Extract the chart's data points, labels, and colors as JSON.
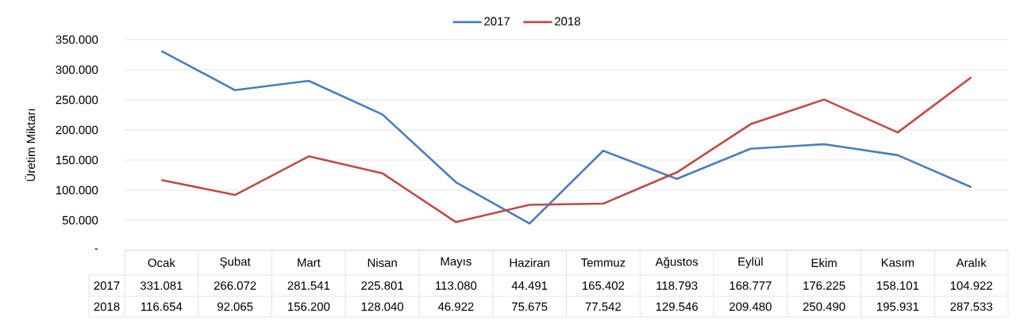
{
  "chart_data": {
    "type": "line",
    "ylabel": "Üretim Miktarı",
    "categories": [
      "Ocak",
      "Şubat",
      "Mart",
      "Nisan",
      "Mayıs",
      "Haziran",
      "Temmuz",
      "Ağustos",
      "Eylül",
      "Ekim",
      "Kasım",
      "Aralık"
    ],
    "series": [
      {
        "name": "2017",
        "color": "#4a7ebb",
        "values": [
          331081,
          266072,
          281541,
          225801,
          113080,
          44491,
          165402,
          118793,
          168777,
          176225,
          158101,
          104922
        ],
        "value_labels": [
          "331.081",
          "266.072",
          "281.541",
          "225.801",
          "113.080",
          "44.491",
          "165.402",
          "118.793",
          "168.777",
          "176.225",
          "158.101",
          "104.922"
        ]
      },
      {
        "name": "2018",
        "color": "#be4b48",
        "values": [
          116654,
          92065,
          156200,
          128040,
          46922,
          75675,
          77542,
          129546,
          209480,
          250490,
          195931,
          287533
        ],
        "value_labels": [
          "116.654",
          "92.065",
          "156.200",
          "128.040",
          "46.922",
          "75.675",
          "77.542",
          "129.546",
          "209.480",
          "250.490",
          "195.931",
          "287.533"
        ]
      }
    ],
    "ylim": [
      0,
      350000
    ],
    "yticks": [
      {
        "value": 0,
        "label": "-"
      },
      {
        "value": 50000,
        "label": "50.000"
      },
      {
        "value": 100000,
        "label": "100.000"
      },
      {
        "value": 150000,
        "label": "150.000"
      },
      {
        "value": 200000,
        "label": "200.000"
      },
      {
        "value": 250000,
        "label": "250.000"
      },
      {
        "value": 300000,
        "label": "300.000"
      },
      {
        "value": 350000,
        "label": "350.000"
      }
    ],
    "grid": "y",
    "legend": "top"
  }
}
